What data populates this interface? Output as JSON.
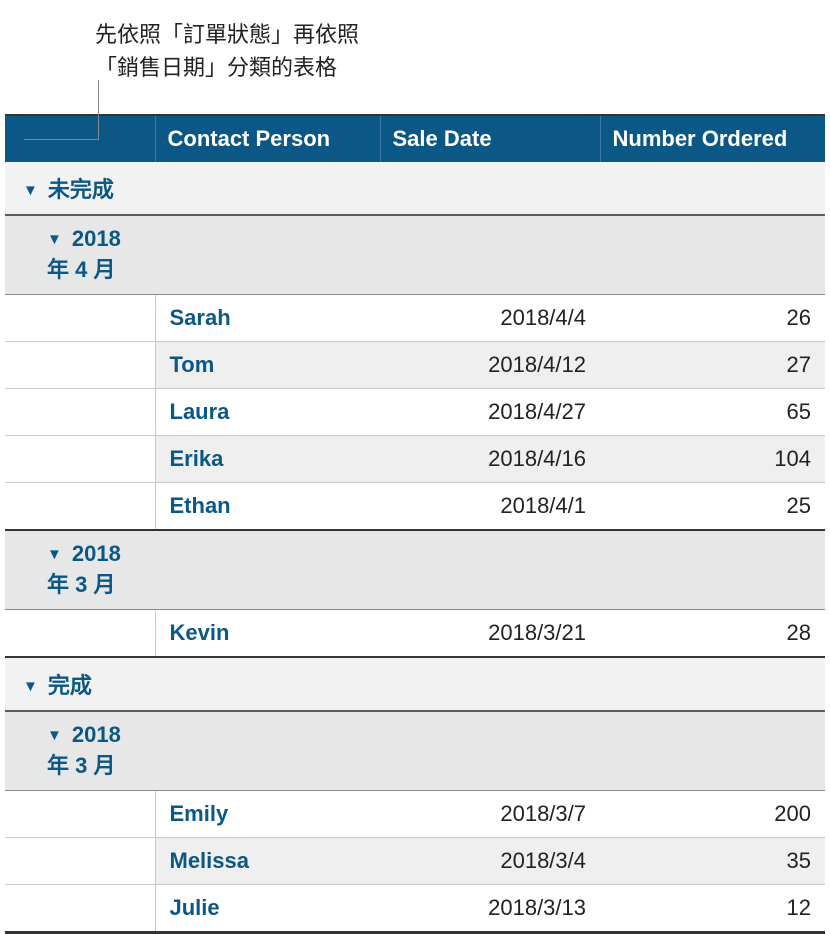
{
  "caption": {
    "line1": "先依照「訂單狀態」再依照",
    "line2": "「銷售日期」分類的表格"
  },
  "colors": {
    "header_bg": "#0b5785",
    "header_text": "#ffffff",
    "group_bg_l1": "#f2f2f2",
    "group_bg_l2": "#e7e7e7",
    "accent_text": "#0b5785",
    "alt_row_bg": "#efefef",
    "border_dark": "#333333",
    "border_light": "#c8c8c8"
  },
  "columns": {
    "spacer": "",
    "contact": "Contact Person",
    "date": "Sale Date",
    "ordered": "Number Ordered"
  },
  "icons": {
    "disclosure": "▼"
  },
  "groups": [
    {
      "label": "未完成",
      "subgroups": [
        {
          "label": "2018 年 4 月",
          "rows": [
            {
              "name": "Sarah",
              "date": "2018/4/4",
              "num": "26"
            },
            {
              "name": "Tom",
              "date": "2018/4/12",
              "num": "27"
            },
            {
              "name": "Laura",
              "date": "2018/4/27",
              "num": "65"
            },
            {
              "name": "Erika",
              "date": "2018/4/16",
              "num": "104"
            },
            {
              "name": "Ethan",
              "date": "2018/4/1",
              "num": "25"
            }
          ]
        },
        {
          "label": "2018 年 3 月",
          "rows": [
            {
              "name": "Kevin",
              "date": "2018/3/21",
              "num": "28"
            }
          ]
        }
      ]
    },
    {
      "label": "完成",
      "subgroups": [
        {
          "label": "2018 年 3 月",
          "rows": [
            {
              "name": "Emily",
              "date": "2018/3/7",
              "num": "200"
            },
            {
              "name": "Melissa",
              "date": "2018/3/4",
              "num": "35"
            },
            {
              "name": "Julie",
              "date": "2018/3/13",
              "num": "12"
            }
          ]
        }
      ]
    }
  ]
}
